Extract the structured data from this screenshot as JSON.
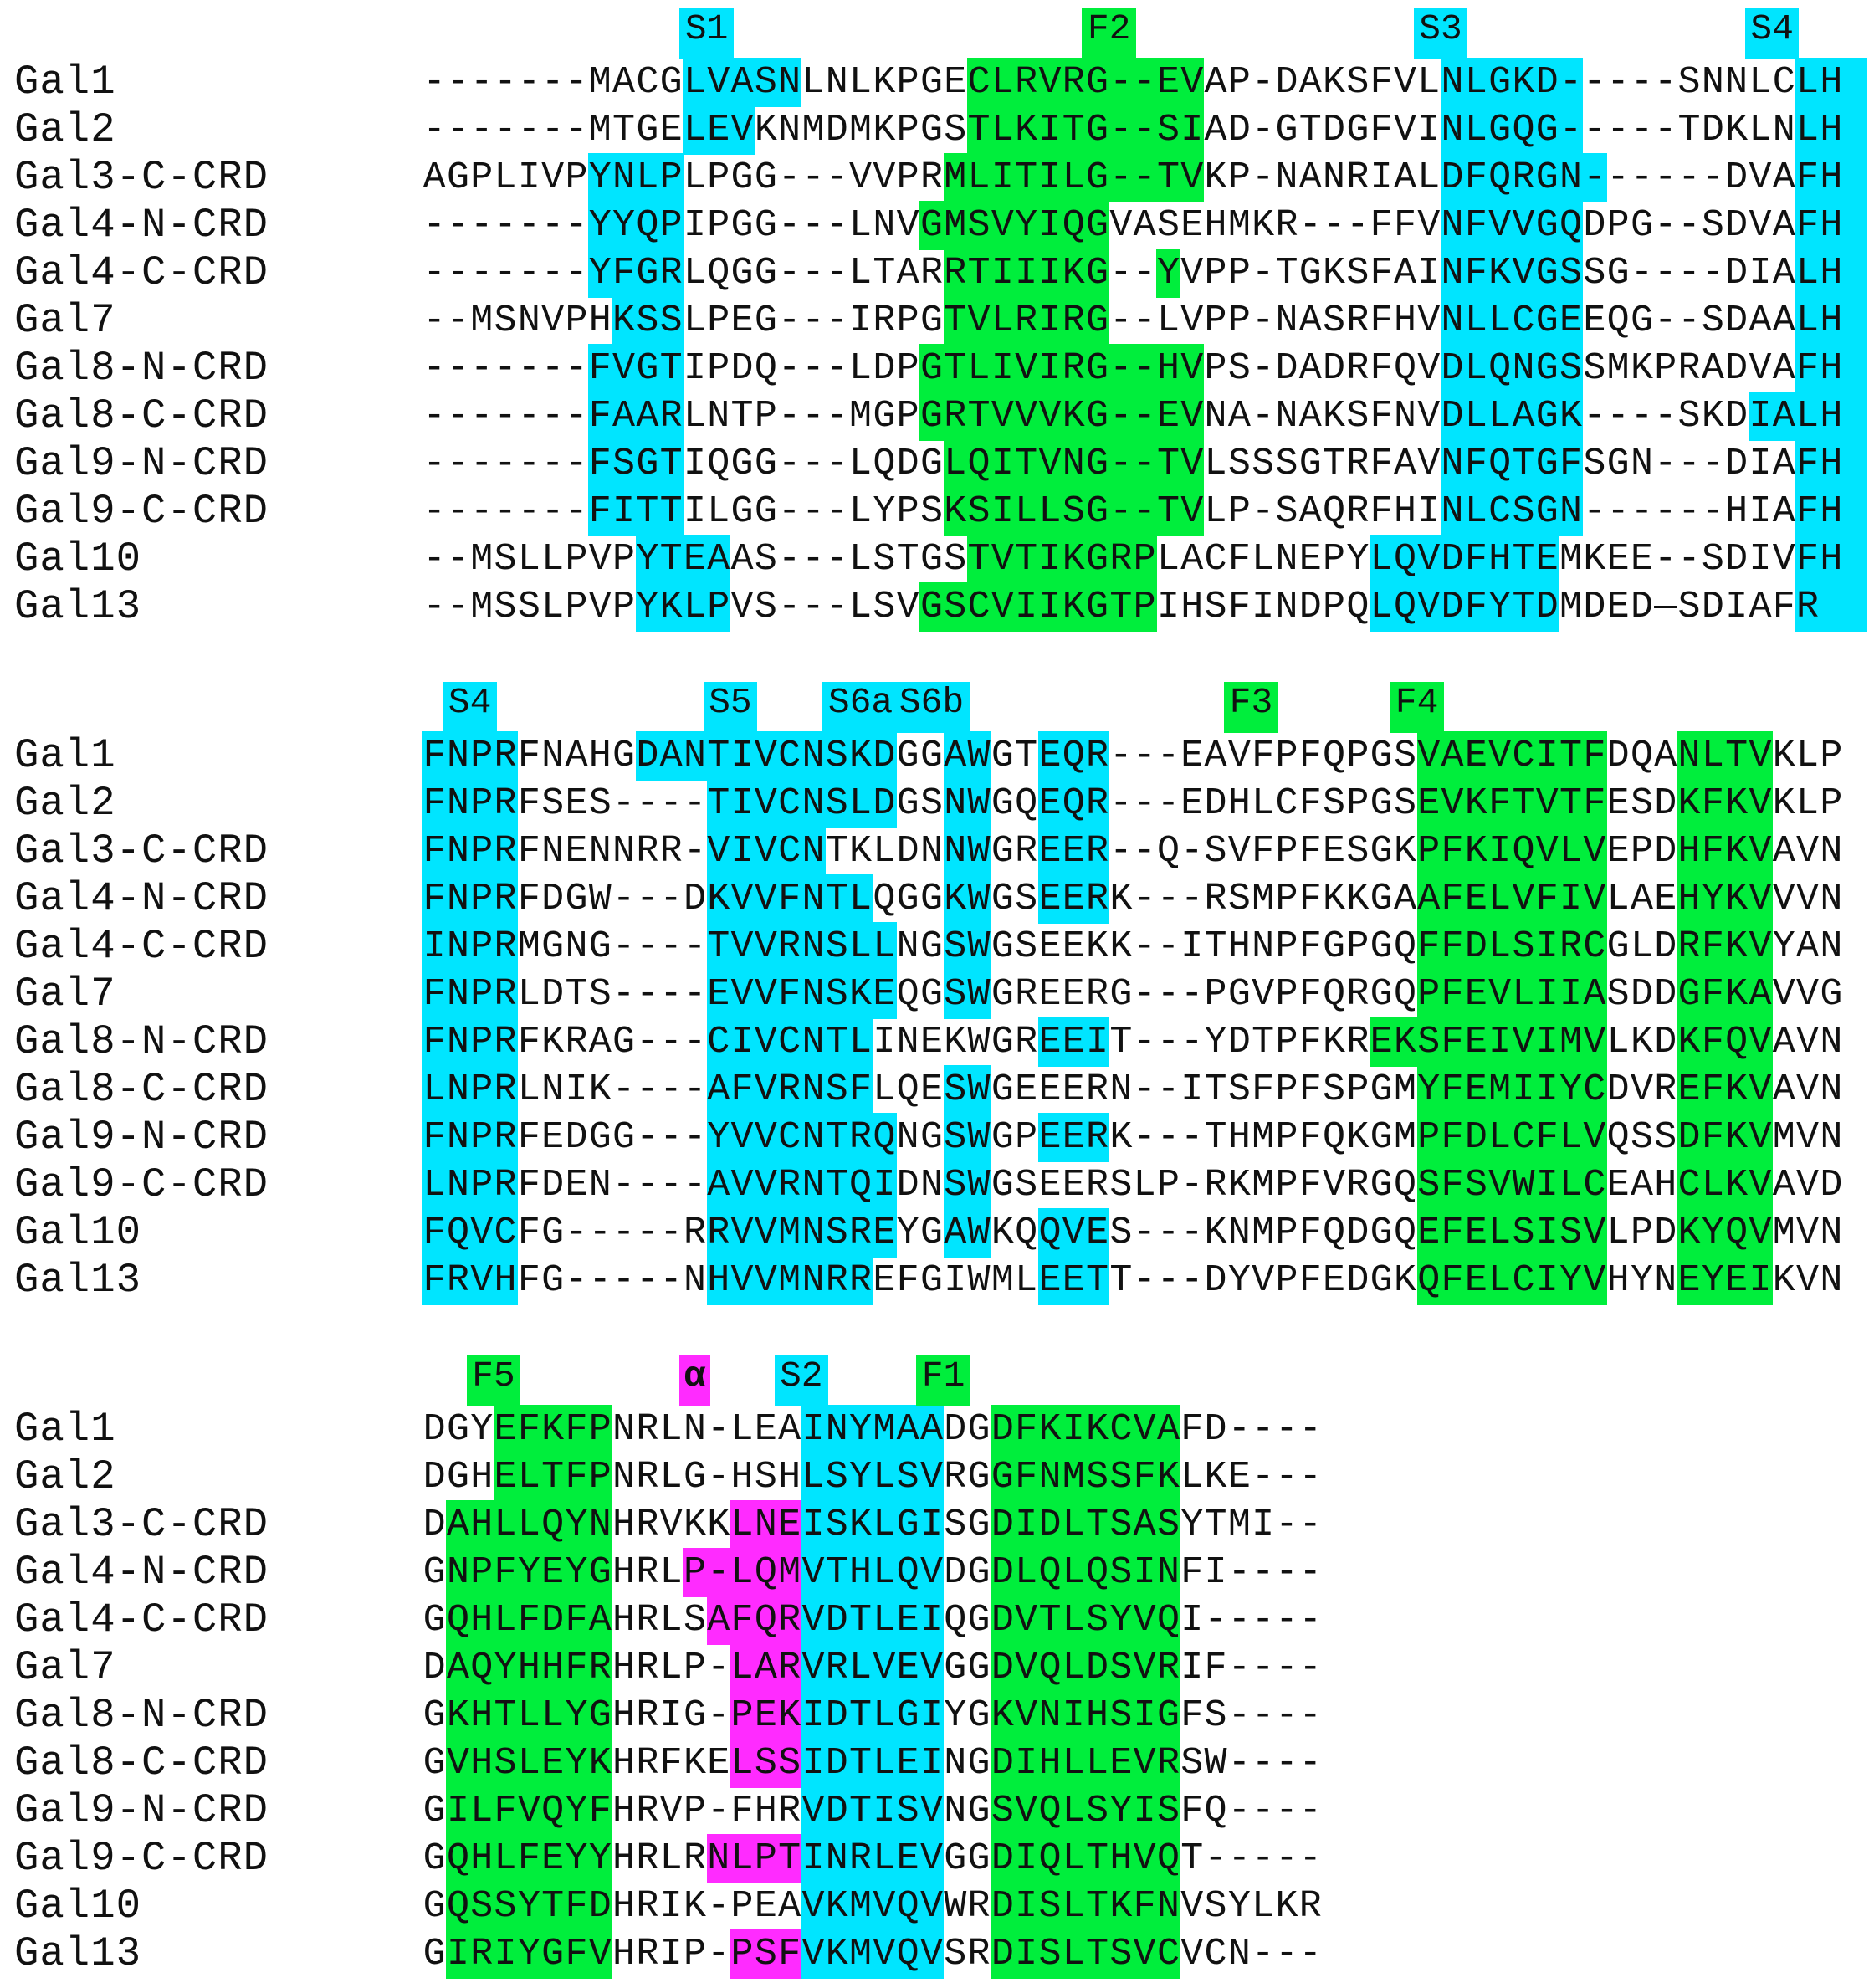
{
  "colors": {
    "strand_S": "#00e5ff",
    "strand_F": "#00ee3c",
    "helix": "#ff2bff",
    "text": "#111111",
    "background": "#ffffff"
  },
  "blocks": [
    {
      "labels": [
        {
          "text": "S1",
          "col": 11,
          "width": 2,
          "type": "S"
        },
        {
          "text": "F2",
          "col": 28,
          "width": 2,
          "type": "F"
        },
        {
          "text": "S3",
          "col": 42,
          "width": 2,
          "type": "S"
        },
        {
          "text": "S4",
          "col": 56,
          "width": 2,
          "type": "S"
        }
      ],
      "rows": [
        {
          "name": "Gal1",
          "seq": "-------MACGLVASNLNLKPGECLRVRG--EVAP-DAKSFVLNLGKD-----SNNLCLH"
        },
        {
          "name": "Gal2",
          "seq": "-------MTGELEVKNMDMKPGSTLKITG--SIAD-GTDGFVINLGQG-----TDKLNLH"
        },
        {
          "name": "Gal3-C-CRD",
          "seq": "AGPLIVPYNLPLPGG---VVPRMLITILG--TVKP-NANRIALDFQRGN------DVAFH"
        },
        {
          "name": "Gal4-N-CRD",
          "seq": "-------YYQPIPGG---LNVGMSVYIQGVASEHMKR---FFVNFVVGQDPG--SDVAFH"
        },
        {
          "name": "Gal4-C-CRD",
          "seq": "-------YFGRLQGG---LTARRTIIIKG--YVPP-TGKSFAINFKVGSSG----DIALH"
        },
        {
          "name": "Gal7",
          "seq": "--MSNVPHKSSLPEG---IRPGTVLRIRG--LVPP-NASRFHVNLLCGEEQG--SDAALH"
        },
        {
          "name": "Gal8-N-CRD",
          "seq": "-------FVGTIPDQ---LDPGTLIVIRG--HVPS-DADRFQVDLQNGSSMKPRADVAFH"
        },
        {
          "name": "Gal8-C-CRD",
          "seq": "-------FAARLNTP---MGPGRTVVVKG--EVNA-NAKSFNVDLLAGK----SKDIALH"
        },
        {
          "name": "Gal9-N-CRD",
          "seq": "-------FSGTIQGG---LQDGLQITVNG--TVLSSSGTRFAVNFQTGFSGN---DIAFH"
        },
        {
          "name": "Gal9-C-CRD",
          "seq": "-------FITTILGG---LYPSKSILLSG--TVLP-SAQRFHINLCSGN------HIAFH"
        },
        {
          "name": "Gal10",
          "seq": "--MSLLPVPYTEAAS---LSTGSTVTIKGRPLACFLNEPYLQVDFHTEMKEE--SDIVFH"
        },
        {
          "name": "Gal13",
          "seq": "--MSSLPVPYKLPVS---LSVGSCVIIKGTPIHSFINDPQLQVDFYTDMDED—SDIAFR"
        }
      ]
    },
    {
      "labels": [
        {
          "text": "S4",
          "col": 1,
          "width": 2,
          "type": "S"
        },
        {
          "text": "S5",
          "col": 12,
          "width": 2,
          "type": "S"
        },
        {
          "text": "S6a",
          "col": 17,
          "width": 3,
          "type": "S"
        },
        {
          "text": "S6b",
          "col": 20,
          "width": 3,
          "type": "S"
        },
        {
          "text": "F3",
          "col": 34,
          "width": 2,
          "type": "F"
        },
        {
          "text": "F4",
          "col": 41,
          "width": 2,
          "type": "F"
        }
      ],
      "rows": [
        {
          "name": "Gal1",
          "seq": "FNPRFNAHGDANTIVCNSKDGGAWGTEQR---EAVFPFQPGSVAEVCITFDQANLTVKLP"
        },
        {
          "name": "Gal2",
          "seq": "FNPRFSES----TIVCNSLDGSNWGQEQR---EDHLCFSPGSEVKFTVTFESDKFKVKLP"
        },
        {
          "name": "Gal3-C-CRD",
          "seq": "FNPRFNENNRR-VIVCNTKLDNNWGREER--Q-SVFPFESGKPFKIQVLVEPDHFKVAVN"
        },
        {
          "name": "Gal4-N-CRD",
          "seq": "FNPRFDGW---DKVVFNTLQGGKWGSEERK---RSMPFKKGAAFELVFIVLAEHYKVVVN"
        },
        {
          "name": "Gal4-C-CRD",
          "seq": "INPRMGNG----TVVRNSLLNGSWGSEEKK--ITHNPFGPGQFFDLSIRCGLDRFKVYAN"
        },
        {
          "name": "Gal7",
          "seq": "FNPRLDTS----EVVFNSKEQGSWGREERG---PGVPFQRGQPFEVLIIASDDGFKAVVG"
        },
        {
          "name": "Gal8-N-CRD",
          "seq": "FNPRFKRAG---CIVCNTLINEKWGREEIT---YDTPFKREKSFEIVIMVLKDKFQVAVN"
        },
        {
          "name": "Gal8-C-CRD",
          "seq": "LNPRLNIK----AFVRNSFLQESWGEEERN--ITSFPFSPGMYFEMIIYCDVREFKVAVN"
        },
        {
          "name": "Gal9-N-CRD",
          "seq": "FNPRFEDGG---YVVCNTRQNGSWGPEERK---THMPFQKGMPFDLCFLVQSSDFKVMVN"
        },
        {
          "name": "Gal9-C-CRD",
          "seq": "LNPRFDEN----AVVRNTQIDNSWGSEERSLP-RKMPFVRGQSFSVWILCEAHCLKVAVD"
        },
        {
          "name": "Gal10",
          "seq": "FQVCFG-----RRVVMNSREYGAWKQQVES---KNMPFQDGQEFELSISVLPDKYQVMVN"
        },
        {
          "name": "Gal13",
          "seq": "FRVHFG-----NHVVMNRREFGIWMLEETT---DYVPFEDGKQFELCIYVHYNEYEIKVN"
        }
      ]
    },
    {
      "labels": [
        {
          "text": "F5",
          "col": 2,
          "width": 2,
          "type": "F"
        },
        {
          "text": "α",
          "col": 11,
          "width": 1,
          "type": "H"
        },
        {
          "text": "S2",
          "col": 15,
          "width": 2,
          "type": "S"
        },
        {
          "text": "F1",
          "col": 21,
          "width": 2,
          "type": "F"
        }
      ],
      "rows": [
        {
          "name": "Gal1",
          "seq": "DGYEFKFPNRLN-LEAINYMAADGDFKIKCVAFD----"
        },
        {
          "name": "Gal2",
          "seq": "DGHELTFPNRLG-HSHLSYLSVRGGFNMSSFKLKE---"
        },
        {
          "name": "Gal3-C-CRD",
          "seq": "DAHLLQYNHRVKKLNEISKLGISGDIDLTSASYTMI--"
        },
        {
          "name": "Gal4-N-CRD",
          "seq": "GNPFYEYGHRLP-LQMVTHLQVDGDLQLQSINFI----"
        },
        {
          "name": "Gal4-C-CRD",
          "seq": "GQHLFDFAHRLSAFQRVDTLEIQGDVTLSYVQI-----"
        },
        {
          "name": "Gal7",
          "seq": "DAQYHHFRHRLP-LARVRLVEVGGDVQLDSVRIF----"
        },
        {
          "name": "Gal8-N-CRD",
          "seq": "GKHTLLYGHRIG-PEKIDTLGIYGKVNIHSIGFS----"
        },
        {
          "name": "Gal8-C-CRD",
          "seq": "GVHSLEYKHRFKELSSIDTLEINGDIHLLEVRSW----"
        },
        {
          "name": "Gal9-N-CRD",
          "seq": "GILFVQYFHRVP-FHRVDTISVNGSVQLSYISFQ----"
        },
        {
          "name": "Gal9-C-CRD",
          "seq": "GQHLFEYYHRLRNLPTINRLEVGGDIQLTHVQT-----"
        },
        {
          "name": "Gal10",
          "seq": "GQSSYTFDHRIK-PEAVKMVQVWRDISLTKFNVSYLKR"
        },
        {
          "name": "Gal13",
          "seq": "GIRIYGFVHRIP-PSFVKMVQVSRDISLTSVCVCN---"
        }
      ]
    }
  ]
}
